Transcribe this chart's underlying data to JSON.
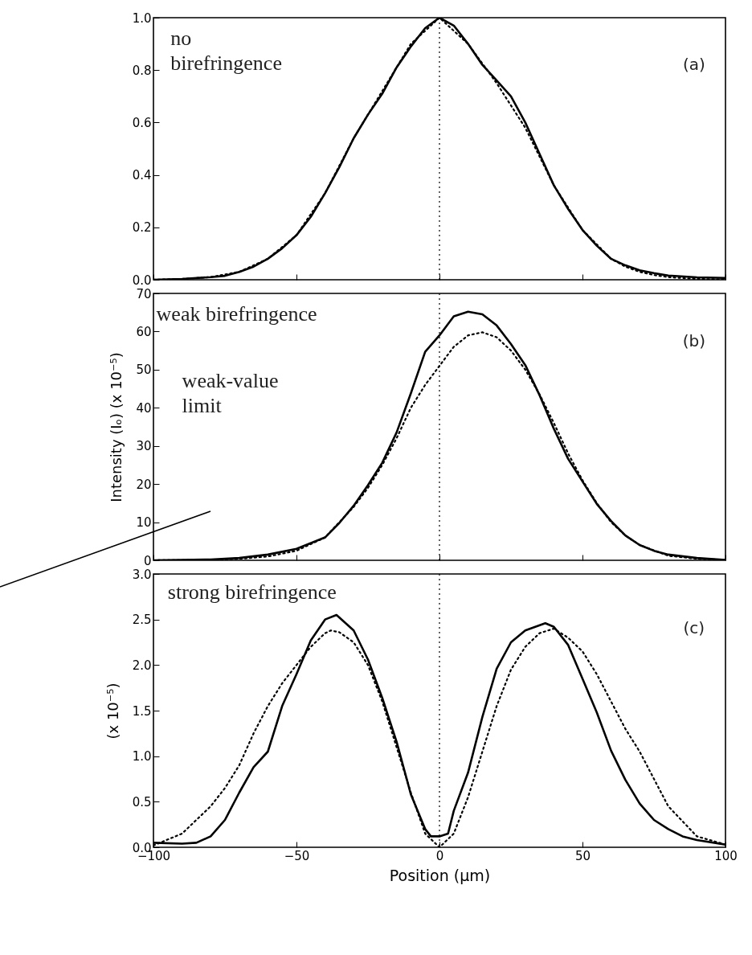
{
  "chart_data": [
    {
      "type": "line",
      "xlim": [
        -100,
        100
      ],
      "xticks": [
        -100,
        -50,
        0,
        50,
        100
      ],
      "ylim": [
        0,
        1
      ],
      "yticks": [
        {
          "value": 0,
          "label": "0.0"
        },
        0.2,
        0.4,
        0.6,
        0.8,
        {
          "value": 1,
          "label": "1.0"
        }
      ],
      "tick_labels": "y",
      "series": [
        {
          "color": "#000000",
          "line_style": "solid",
          "x": [
            -100,
            -90,
            -80,
            -75,
            -70,
            -65,
            -60,
            -55,
            -50,
            -45,
            -40,
            -35,
            -30,
            -25,
            -20,
            -15,
            -10,
            -5,
            0,
            5,
            10,
            15,
            20,
            25,
            30,
            35,
            40,
            45,
            50,
            55,
            60,
            65,
            70,
            75,
            80,
            90,
            100
          ],
          "values": [
            0,
            0.003,
            0.01,
            0.015,
            0.03,
            0.05,
            0.08,
            0.12,
            0.17,
            0.24,
            0.33,
            0.43,
            0.54,
            0.63,
            0.71,
            0.81,
            0.89,
            0.96,
            1.0,
            0.97,
            0.9,
            0.82,
            0.76,
            0.7,
            0.6,
            0.48,
            0.36,
            0.27,
            0.19,
            0.13,
            0.08,
            0.055,
            0.036,
            0.025,
            0.016,
            0.009,
            0.007
          ]
        },
        {
          "color": "#000000",
          "line_style": "dotted",
          "x": [
            -100,
            -90,
            -80,
            -70,
            -60,
            -50,
            -40,
            -30,
            -20,
            -10,
            0,
            10,
            20,
            30,
            40,
            50,
            60,
            65,
            70,
            75,
            80,
            90,
            100
          ],
          "values": [
            0,
            0.003,
            0.01,
            0.03,
            0.08,
            0.17,
            0.33,
            0.54,
            0.72,
            0.9,
            1.0,
            0.9,
            0.75,
            0.58,
            0.36,
            0.19,
            0.08,
            0.05,
            0.03,
            0.018,
            0.01,
            0.003,
            0.001
          ]
        }
      ],
      "ref_lines": [
        {
          "axis": "x",
          "value": 0,
          "line_style": "dotted"
        }
      ],
      "annotations": [
        "no birefringence",
        "(a)"
      ]
    },
    {
      "type": "line",
      "xlim": [
        -100,
        100
      ],
      "xticks": [
        -100,
        -50,
        0,
        50,
        100
      ],
      "ylim": [
        0,
        70
      ],
      "yticks": [
        0,
        10,
        20,
        30,
        40,
        50,
        60,
        70
      ],
      "tick_labels": "y",
      "ylabel": "Intensity (Iₒ) (x 10⁻⁵)",
      "series": [
        {
          "color": "#000000",
          "line_style": "solid",
          "x": [
            -100,
            -80,
            -70,
            -60,
            -50,
            -40,
            -35,
            -30,
            -25,
            -20,
            -15,
            -10,
            -5,
            0,
            5,
            10,
            15,
            20,
            25,
            30,
            35,
            40,
            45,
            50,
            55,
            60,
            65,
            70,
            75,
            80,
            90,
            100
          ],
          "values": [
            0,
            0.2,
            0.6,
            1.5,
            3,
            6,
            9.8,
            14.3,
            19.7,
            25.6,
            33.5,
            43.8,
            54.7,
            59,
            64,
            65.2,
            64.5,
            61.6,
            56.7,
            51.2,
            43.3,
            34.5,
            26.6,
            20.7,
            14.8,
            10.3,
            6.5,
            4,
            2.5,
            1.5,
            0.6,
            0.1
          ]
        },
        {
          "color": "#000000",
          "line_style": "dotted",
          "x": [
            -100,
            -80,
            -70,
            -60,
            -50,
            -40,
            -30,
            -25,
            -20,
            -15,
            -10,
            -5,
            0,
            5,
            10,
            15,
            20,
            25,
            30,
            35,
            40,
            45,
            50,
            55,
            60,
            65,
            70,
            80,
            90,
            100
          ],
          "values": [
            0,
            0.1,
            0.4,
            1,
            2.5,
            6,
            14,
            19,
            25,
            32,
            40,
            46,
            51,
            56,
            59,
            59.8,
            58.5,
            55,
            50,
            43.5,
            36,
            28,
            21,
            15,
            10,
            6.5,
            4,
            1.2,
            0.4,
            0.1
          ]
        }
      ],
      "ref_lines": [
        {
          "axis": "x",
          "value": 0,
          "line_style": "dotted"
        }
      ],
      "annotations": [
        "weak birefringence",
        "weak-value limit",
        "(b)"
      ]
    },
    {
      "type": "line",
      "xlim": [
        -100,
        100
      ],
      "xticks": [
        -100,
        -50,
        0,
        50,
        100
      ],
      "ylim": [
        0,
        3
      ],
      "yticks": [
        {
          "value": 0,
          "label": "0.0"
        },
        0.5,
        {
          "value": 1,
          "label": "1.0"
        },
        1.5,
        {
          "value": 2,
          "label": "2.0"
        },
        2.5,
        {
          "value": 3,
          "label": "3.0"
        }
      ],
      "ylabel": "(x 10⁻⁵)",
      "xlabel": "Position (μm)",
      "series": [
        {
          "color": "#000000",
          "line_style": "solid",
          "x": [
            -100,
            -90,
            -85,
            -80,
            -75,
            -70,
            -65,
            -60,
            -55,
            -50,
            -45,
            -40,
            -36,
            -30,
            -25,
            -20,
            -15,
            -10,
            -5,
            -3,
            0,
            3,
            5,
            10,
            15,
            20,
            25,
            30,
            37,
            40,
            45,
            50,
            55,
            60,
            65,
            70,
            75,
            80,
            85,
            90,
            100
          ],
          "values": [
            0.05,
            0.04,
            0.05,
            0.12,
            0.3,
            0.6,
            0.88,
            1.05,
            1.55,
            1.9,
            2.27,
            2.5,
            2.55,
            2.38,
            2.06,
            1.64,
            1.16,
            0.58,
            0.2,
            0.12,
            0.12,
            0.15,
            0.4,
            0.82,
            1.43,
            1.96,
            2.25,
            2.38,
            2.46,
            2.42,
            2.22,
            1.85,
            1.48,
            1.06,
            0.74,
            0.48,
            0.3,
            0.2,
            0.12,
            0.08,
            0.03
          ]
        },
        {
          "color": "#000000",
          "line_style": "dotted",
          "x": [
            -100,
            -90,
            -80,
            -75,
            -70,
            -65,
            -60,
            -55,
            -50,
            -45,
            -40,
            -38,
            -35,
            -30,
            -25,
            -20,
            -15,
            -10,
            -5,
            0,
            5,
            10,
            15,
            20,
            25,
            30,
            35,
            40,
            45,
            50,
            55,
            60,
            65,
            70,
            75,
            80,
            90,
            100
          ],
          "values": [
            0.02,
            0.15,
            0.45,
            0.65,
            0.9,
            1.25,
            1.55,
            1.8,
            2.0,
            2.2,
            2.35,
            2.38,
            2.36,
            2.25,
            2.0,
            1.6,
            1.1,
            0.6,
            0.15,
            0,
            0.15,
            0.55,
            1.05,
            1.55,
            1.95,
            2.2,
            2.35,
            2.4,
            2.3,
            2.15,
            1.9,
            1.6,
            1.3,
            1.05,
            0.75,
            0.45,
            0.12,
            0.03
          ]
        }
      ],
      "ref_lines": [
        {
          "axis": "x",
          "value": 0,
          "line_style": "dotted"
        }
      ],
      "annotations": [
        "strong birefringence",
        "(c)"
      ]
    }
  ]
}
